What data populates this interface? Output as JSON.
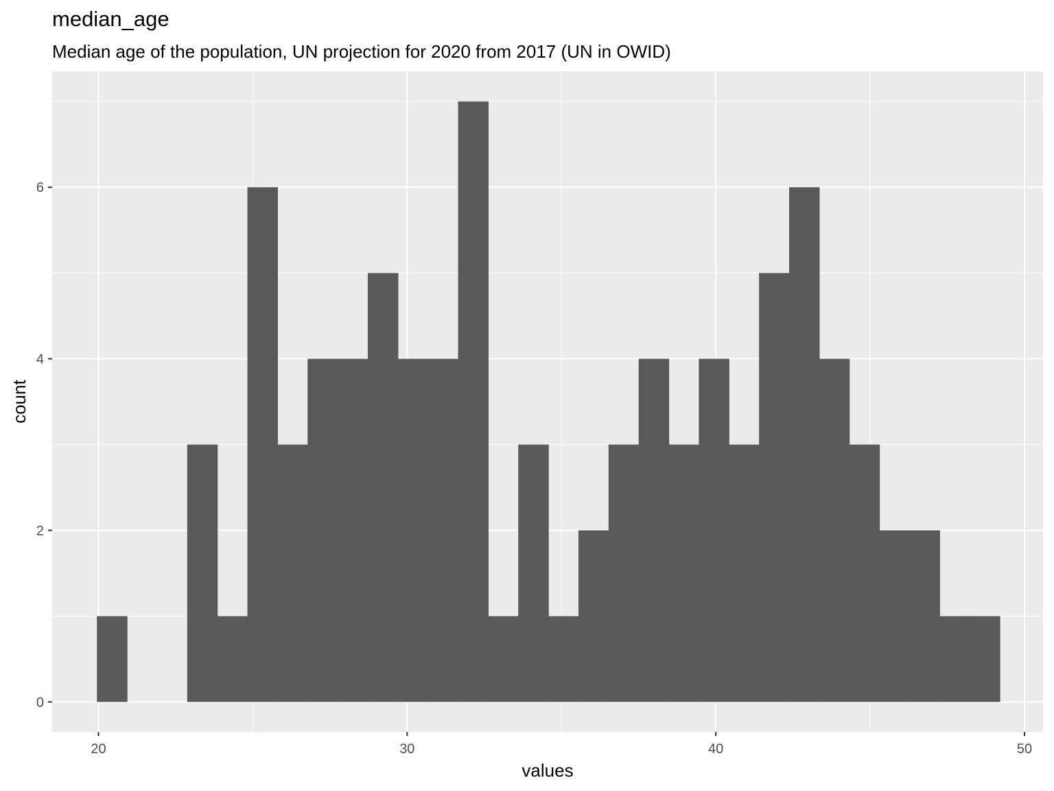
{
  "chart_data": {
    "type": "bar",
    "title": "median_age",
    "subtitle": "Median age of the population, UN projection for 2020 from 2017 (UN in OWID)",
    "xlabel": "values",
    "ylabel": "count",
    "xlim": [
      18.5,
      50.6
    ],
    "ylim": [
      -0.35,
      7.35
    ],
    "x_ticks": [
      20,
      30,
      40,
      50
    ],
    "y_ticks": [
      0,
      2,
      4,
      6
    ],
    "bin_width": 0.975,
    "bin_start": 19.95,
    "values": [
      1,
      0,
      0,
      3,
      1,
      6,
      3,
      4,
      4,
      5,
      4,
      4,
      7,
      1,
      3,
      1,
      2,
      3,
      4,
      3,
      4,
      3,
      5,
      6,
      4,
      3,
      2,
      2,
      1,
      1
    ],
    "bar_color": "#595959",
    "panel_color": "#ebebeb",
    "grid": true,
    "legend": "none"
  }
}
